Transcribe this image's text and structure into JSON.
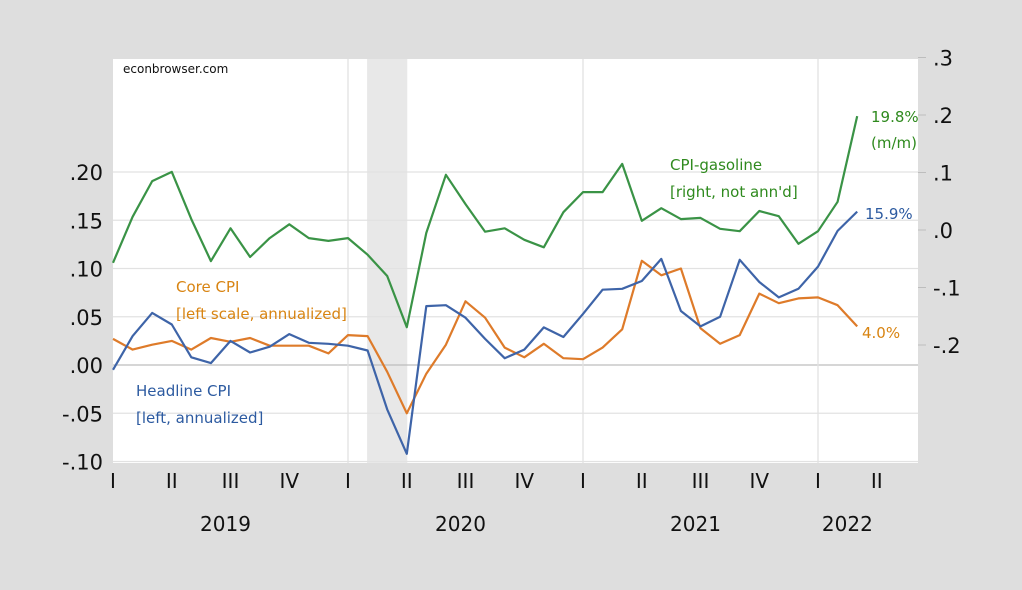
{
  "chart_data": {
    "type": "line",
    "title": "",
    "watermark": "econbrowser.com",
    "x_frequency": "monthly",
    "x_start": "2019-01",
    "x_end": "2022-03",
    "x_quarter_labels": [
      "I",
      "II",
      "III",
      "IV",
      "I",
      "II",
      "III",
      "IV",
      "I",
      "II",
      "III",
      "IV",
      "I",
      "II"
    ],
    "x_year_labels": [
      "2019",
      "2020",
      "2021",
      "2022"
    ],
    "left_axis": {
      "ylim": [
        -0.1,
        0.25
      ],
      "ticks": [
        -0.1,
        -0.05,
        0.0,
        0.05,
        0.1,
        0.15,
        0.2
      ],
      "tick_labels": [
        "-.10",
        "-.05",
        ".00",
        ".05",
        ".10",
        ".15",
        ".20"
      ]
    },
    "right_axis": {
      "ylim": [
        -0.4,
        0.3
      ],
      "ticks": [
        -0.2,
        -0.1,
        0.0,
        0.1,
        0.2,
        0.3
      ],
      "tick_labels": [
        "-.2",
        "-.1",
        ".0",
        ".1",
        ".2",
        ".3"
      ]
    },
    "recession_shading": {
      "start": "2020-02",
      "end": "2020-04",
      "color": "#e8e8e8"
    },
    "grid": true,
    "series": [
      {
        "name": "CPI-gasoline",
        "axis": "right",
        "color": "#3a9346",
        "label_lines": [
          "CPI-gasoline",
          "[right, not ann'd]"
        ],
        "end_label_lines": [
          "19.8%",
          "(m/m)"
        ],
        "values": [
          -0.057,
          0.023,
          0.085,
          0.101,
          0.019,
          -0.054,
          0.003,
          -0.047,
          -0.014,
          0.01,
          -0.014,
          -0.019,
          -0.014,
          -0.043,
          -0.08,
          -0.169,
          -0.005,
          0.096,
          0.045,
          -0.003,
          0.003,
          -0.017,
          -0.03,
          0.031,
          0.066,
          0.066,
          0.115,
          0.016,
          0.038,
          0.019,
          0.021,
          0.002,
          -0.002,
          0.033,
          0.024,
          -0.024,
          -0.002,
          0.049,
          0.198
        ]
      },
      {
        "name": "Headline CPI",
        "axis": "left",
        "color": "#3e64a8",
        "label_lines": [
          "Headline CPI",
          "[left, annualized]"
        ],
        "end_label_lines": [
          "15.9%"
        ],
        "values": [
          -0.005,
          0.03,
          0.054,
          0.042,
          0.008,
          0.002,
          0.025,
          0.013,
          0.019,
          0.032,
          0.023,
          0.022,
          0.02,
          0.015,
          -0.046,
          -0.092,
          0.061,
          0.062,
          0.049,
          0.027,
          0.007,
          0.016,
          0.039,
          0.029,
          0.053,
          0.078,
          0.079,
          0.087,
          0.11,
          0.056,
          0.04,
          0.05,
          0.109,
          0.086,
          0.07,
          0.079,
          0.102,
          0.139,
          0.159
        ]
      },
      {
        "name": "Core CPI",
        "axis": "left",
        "color": "#de7b2a",
        "label_lines": [
          "Core CPI",
          "[left scale, annualized]"
        ],
        "end_label_lines": [
          "4.0%"
        ],
        "values": [
          0.027,
          0.016,
          0.021,
          0.025,
          0.016,
          0.028,
          0.024,
          0.028,
          0.02,
          0.02,
          0.02,
          0.012,
          0.031,
          0.03,
          -0.007,
          -0.05,
          -0.009,
          0.021,
          0.066,
          0.049,
          0.018,
          0.008,
          0.022,
          0.007,
          0.006,
          0.018,
          0.037,
          0.108,
          0.093,
          0.1,
          0.038,
          0.022,
          0.031,
          0.074,
          0.064,
          0.069,
          0.07,
          0.062,
          0.04
        ]
      }
    ]
  },
  "colors": {
    "background": "#dedede",
    "plot_bg": "#ffffff",
    "grid": "#e2e2e2",
    "zero_line": "#bdbdbd",
    "gasoline_label": "#2f8a1e",
    "headline_label": "#2c5aa0",
    "core_label": "#d88412"
  }
}
